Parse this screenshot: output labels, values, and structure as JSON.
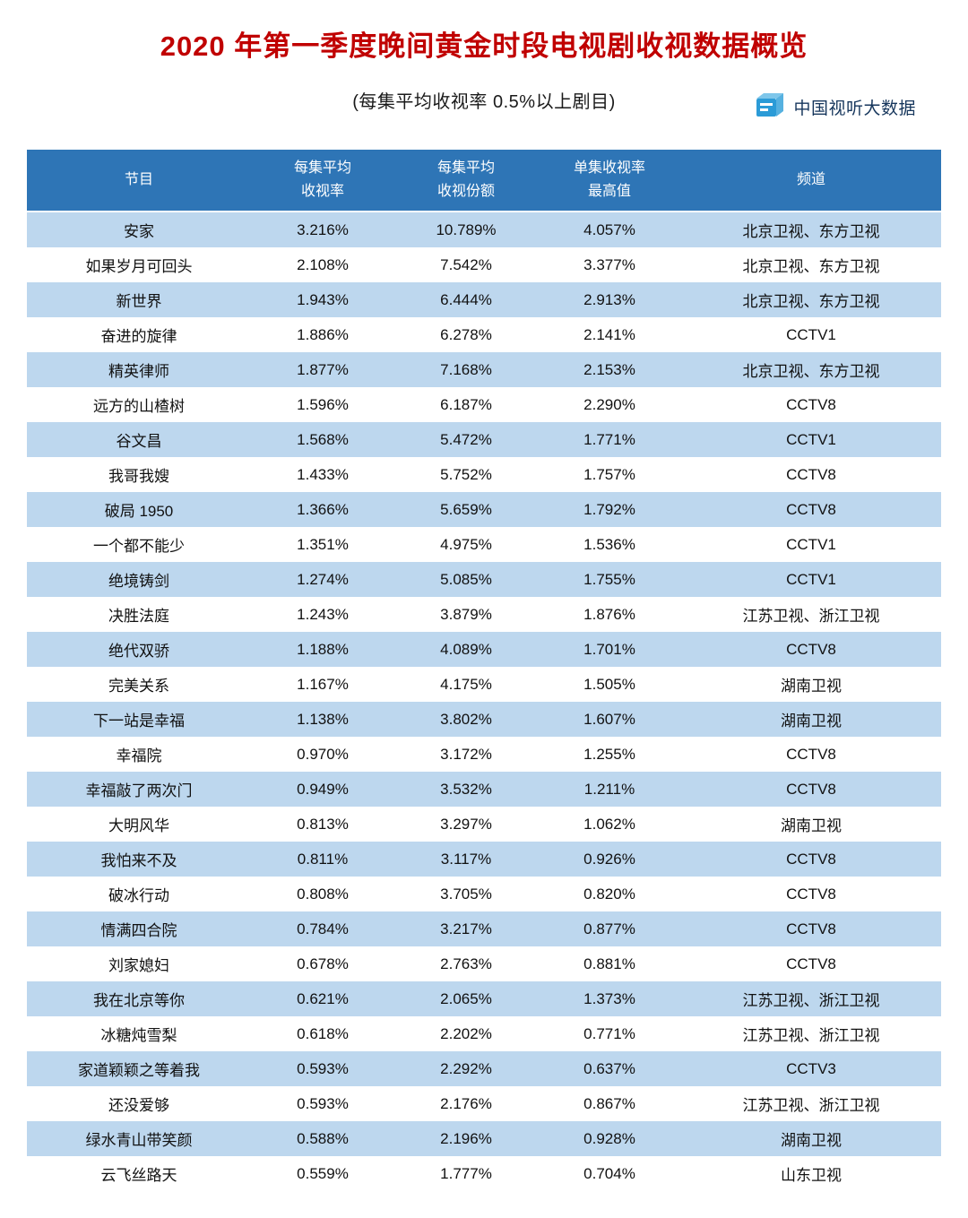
{
  "page": {
    "title": "2020 年第一季度晚间黄金时段电视剧收视数据概览",
    "subtitle": "(每集平均收视率 0.5%以上剧目)",
    "logo_text": "中国视听大数据"
  },
  "colors": {
    "title_red": "#c00000",
    "header_blue": "#2e75b6",
    "row_alt_blue": "#bdd7ee",
    "logo_blue": "#2b9bd7"
  },
  "header": {
    "cells": [
      {
        "line1": "节目",
        "line2": ""
      },
      {
        "line1": "每集平均",
        "line2": "收视率"
      },
      {
        "line1": "每集平均",
        "line2": "收视份额"
      },
      {
        "line1": "单集收视率",
        "line2": "最高值"
      },
      {
        "line1": "频道",
        "line2": ""
      }
    ]
  },
  "chart_data": {
    "type": "table",
    "title": "2020 年第一季度晚间黄金时段电视剧收视数据概览",
    "subtitle": "(每集平均收视率 0.5%以上剧目)",
    "columns": [
      "节目",
      "每集平均收视率",
      "每集平均收视份额",
      "单集收视率最高值",
      "频道"
    ],
    "rows": [
      [
        "安家",
        "3.216%",
        "10.789%",
        "4.057%",
        "北京卫视、东方卫视"
      ],
      [
        "如果岁月可回头",
        "2.108%",
        "7.542%",
        "3.377%",
        "北京卫视、东方卫视"
      ],
      [
        "新世界",
        "1.943%",
        "6.444%",
        "2.913%",
        "北京卫视、东方卫视"
      ],
      [
        "奋进的旋律",
        "1.886%",
        "6.278%",
        "2.141%",
        "CCTV1"
      ],
      [
        "精英律师",
        "1.877%",
        "7.168%",
        "2.153%",
        "北京卫视、东方卫视"
      ],
      [
        "远方的山楂树",
        "1.596%",
        "6.187%",
        "2.290%",
        "CCTV8"
      ],
      [
        "谷文昌",
        "1.568%",
        "5.472%",
        "1.771%",
        "CCTV1"
      ],
      [
        "我哥我嫂",
        "1.433%",
        "5.752%",
        "1.757%",
        "CCTV8"
      ],
      [
        "破局 1950",
        "1.366%",
        "5.659%",
        "1.792%",
        "CCTV8"
      ],
      [
        "一个都不能少",
        "1.351%",
        "4.975%",
        "1.536%",
        "CCTV1"
      ],
      [
        "绝境铸剑",
        "1.274%",
        "5.085%",
        "1.755%",
        "CCTV1"
      ],
      [
        "决胜法庭",
        "1.243%",
        "3.879%",
        "1.876%",
        "江苏卫视、浙江卫视"
      ],
      [
        "绝代双骄",
        "1.188%",
        "4.089%",
        "1.701%",
        "CCTV8"
      ],
      [
        "完美关系",
        "1.167%",
        "4.175%",
        "1.505%",
        "湖南卫视"
      ],
      [
        "下一站是幸福",
        "1.138%",
        "3.802%",
        "1.607%",
        "湖南卫视"
      ],
      [
        "幸福院",
        "0.970%",
        "3.172%",
        "1.255%",
        "CCTV8"
      ],
      [
        "幸福敲了两次门",
        "0.949%",
        "3.532%",
        "1.211%",
        "CCTV8"
      ],
      [
        "大明风华",
        "0.813%",
        "3.297%",
        "1.062%",
        "湖南卫视"
      ],
      [
        "我怕来不及",
        "0.811%",
        "3.117%",
        "0.926%",
        "CCTV8"
      ],
      [
        "破冰行动",
        "0.808%",
        "3.705%",
        "0.820%",
        "CCTV8"
      ],
      [
        "情满四合院",
        "0.784%",
        "3.217%",
        "0.877%",
        "CCTV8"
      ],
      [
        "刘家媳妇",
        "0.678%",
        "2.763%",
        "0.881%",
        "CCTV8"
      ],
      [
        "我在北京等你",
        "0.621%",
        "2.065%",
        "1.373%",
        "江苏卫视、浙江卫视"
      ],
      [
        "冰糖炖雪梨",
        "0.618%",
        "2.202%",
        "0.771%",
        "江苏卫视、浙江卫视"
      ],
      [
        "家道颖颖之等着我",
        "0.593%",
        "2.292%",
        "0.637%",
        "CCTV3"
      ],
      [
        "还没爱够",
        "0.593%",
        "2.176%",
        "0.867%",
        "江苏卫视、浙江卫视"
      ],
      [
        "绿水青山带笑颜",
        "0.588%",
        "2.196%",
        "0.928%",
        "湖南卫视"
      ],
      [
        "云飞丝路天",
        "0.559%",
        "1.777%",
        "0.704%",
        "山东卫视"
      ]
    ]
  }
}
